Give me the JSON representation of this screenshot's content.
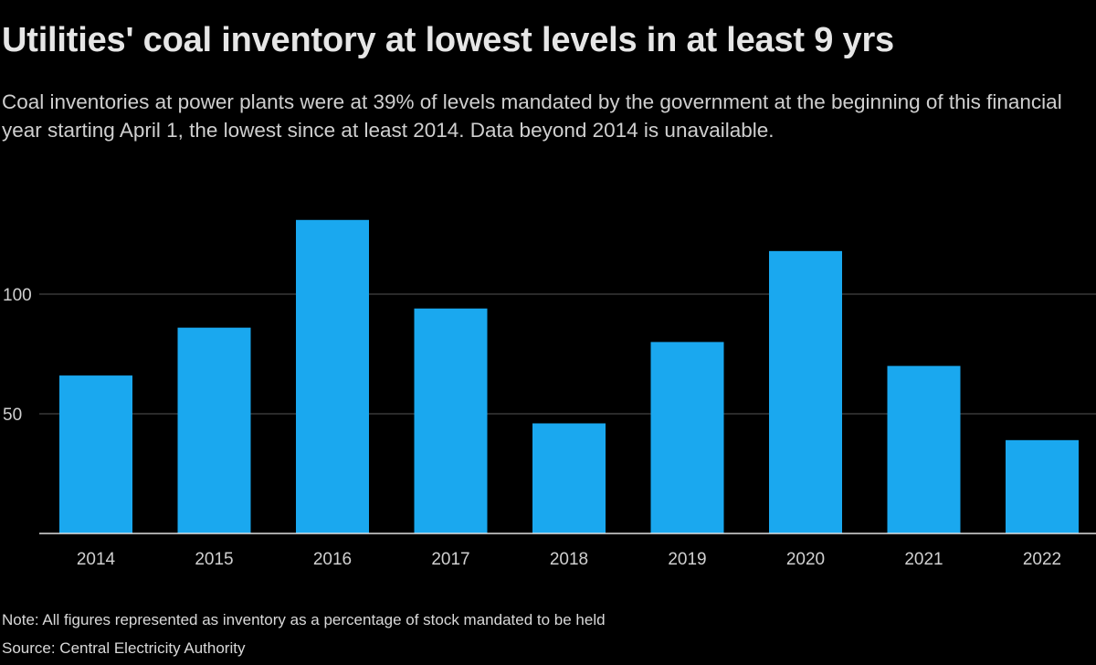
{
  "header": {
    "title": "Utilities' coal inventory at lowest levels in at least 9 yrs",
    "subtitle": "Coal inventories at power plants were at 39% of levels mandated by the government at the beginning of this financial year starting April 1, the lowest since at least 2014. Data beyond 2014 is unavailable."
  },
  "footer": {
    "note": "Note: All figures represented as inventory as a percentage of stock mandated to be held",
    "source": "Source: Central Electricity Authority"
  },
  "colors": {
    "background": "#000000",
    "bar": "#1aa8ef",
    "gridline": "#555555",
    "axis": "#e0e0e0",
    "tick_text": "#d0d0d0"
  },
  "chart_data": {
    "type": "bar",
    "title": "Utilities' coal inventory at lowest levels in at least 9 yrs",
    "xlabel": "",
    "ylabel": "",
    "categories": [
      "2014",
      "2015",
      "2016",
      "2017",
      "2018",
      "2019",
      "2020",
      "2021",
      "2022"
    ],
    "values": [
      66,
      86,
      131,
      94,
      46,
      80,
      118,
      70,
      39
    ],
    "ylim": [
      0,
      140
    ],
    "yticks": [
      50,
      100
    ],
    "grid": true,
    "legend": "none"
  }
}
